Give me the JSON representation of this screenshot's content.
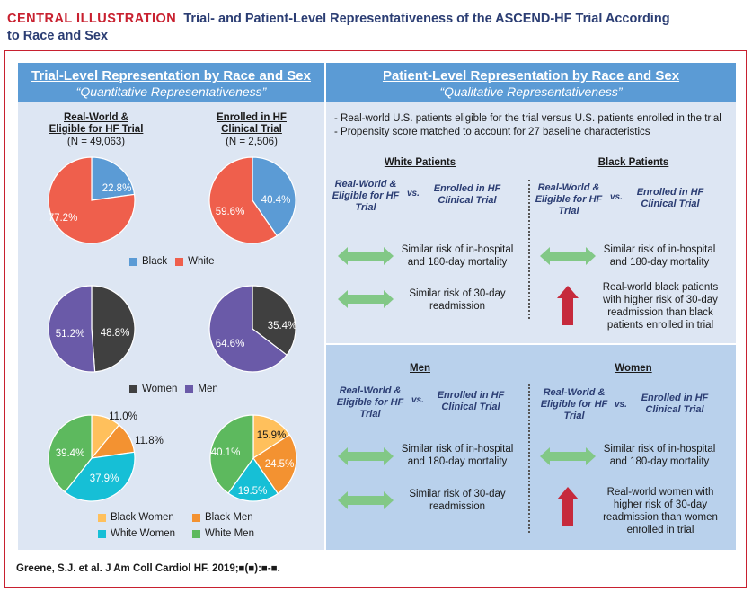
{
  "header": {
    "label": "CENTRAL ILLUSTRATION",
    "title_part1": "Trial- and Patient-Level Representativeness of the ASCEND-HF Trial According",
    "title_part2": "to Race and Sex"
  },
  "left_panel": {
    "title": "Trial-Level Representation by Race and Sex",
    "subtitle": "“Quantitative Representativeness”",
    "columns": [
      {
        "heading": "Real-World & Eligible for HF Trial",
        "n": "(N = 49,063)"
      },
      {
        "heading": "Enrolled in HF Clinical Trial",
        "n": "(N = 2,506)"
      }
    ]
  },
  "right_panel": {
    "title": "Patient-Level Representation by Race and Sex",
    "subtitle": "“Qualitative Representativeness”",
    "bullets": [
      "- Real-world U.S. patients eligible for the trial versus U.S. patients enrolled in the trial",
      "- Propensity score matched to account for 27 baseline characteristics"
    ],
    "comparison_left": "Real-World & Eligible for HF Trial",
    "vs": "vs.",
    "comparison_right": "Enrolled in HF Clinical Trial",
    "groups": {
      "white": {
        "title": "White Patients",
        "result1": "Similar risk of in-hospital and 180-day mortality",
        "result2": "Similar risk of 30-day readmission"
      },
      "black": {
        "title": "Black Patients",
        "result1": "Similar risk of in-hospital and 180-day mortality",
        "result2": "Real-world black patients with higher risk of 30-day readmission than black patients enrolled in trial"
      },
      "men": {
        "title": "Men",
        "result1": "Similar risk of in-hospital and 180-day mortality",
        "result2": "Similar risk of 30-day readmission"
      },
      "women": {
        "title": "Women",
        "result1": "Similar risk of in-hospital and 180-day mortality",
        "result2": "Real-world women with higher risk of 30-day readmission than women enrolled in trial"
      }
    }
  },
  "footnote": "Greene, S.J. et al. J Am Coll Cardiol HF. 2019;■(■):■-■.",
  "colors": {
    "black": "#5b9bd5",
    "white": "#ef5f4c",
    "women": "#404040",
    "men": "#6a5aa8",
    "black_women": "#ffc05c",
    "black_men": "#f39231",
    "white_women": "#16bfd6",
    "white_men": "#5db95e",
    "equal_arrow": "#82c886",
    "up_arrow": "#c62a3c"
  },
  "chart_data": [
    {
      "type": "pie",
      "title": "Race — Real-World & Eligible for HF Trial",
      "slices": [
        {
          "name": "Black",
          "value": 22.8,
          "label": "22.8%",
          "color_key": "black"
        },
        {
          "name": "White",
          "value": 77.2,
          "label": "77.2%",
          "color_key": "white"
        }
      ]
    },
    {
      "type": "pie",
      "title": "Race — Enrolled in HF Clinical Trial",
      "slices": [
        {
          "name": "Black",
          "value": 40.4,
          "label": "40.4%",
          "color_key": "black"
        },
        {
          "name": "White",
          "value": 59.6,
          "label": "59.6%",
          "color_key": "white"
        }
      ]
    },
    {
      "type": "pie",
      "title": "Sex — Real-World & Eligible for HF Trial",
      "slices": [
        {
          "name": "Women",
          "value": 48.8,
          "label": "48.8%",
          "color_key": "women"
        },
        {
          "name": "Men",
          "value": 51.2,
          "label": "51.2%",
          "color_key": "men"
        }
      ]
    },
    {
      "type": "pie",
      "title": "Sex — Enrolled in HF Clinical Trial",
      "slices": [
        {
          "name": "Women",
          "value": 35.4,
          "label": "35.4%",
          "color_key": "women"
        },
        {
          "name": "Men",
          "value": 64.6,
          "label": "64.6%",
          "color_key": "men"
        }
      ]
    },
    {
      "type": "pie",
      "title": "Race/Sex — Real-World & Eligible for HF Trial",
      "slices": [
        {
          "name": "Black Women",
          "value": 11.0,
          "label": "11.0%",
          "color_key": "black_women"
        },
        {
          "name": "Black Men",
          "value": 11.8,
          "label": "11.8%",
          "color_key": "black_men"
        },
        {
          "name": "White Women",
          "value": 37.9,
          "label": "37.9%",
          "color_key": "white_women"
        },
        {
          "name": "White Men",
          "value": 39.4,
          "label": "39.4%",
          "color_key": "white_men"
        }
      ]
    },
    {
      "type": "pie",
      "title": "Race/Sex — Enrolled in HF Clinical Trial",
      "slices": [
        {
          "name": "Black Women",
          "value": 15.9,
          "label": "15.9%",
          "color_key": "black_women"
        },
        {
          "name": "Black Men",
          "value": 24.5,
          "label": "24.5%",
          "color_key": "black_men"
        },
        {
          "name": "White Women",
          "value": 19.5,
          "label": "19.5%",
          "color_key": "white_women"
        },
        {
          "name": "White Men",
          "value": 40.1,
          "label": "40.1%",
          "color_key": "white_men"
        }
      ]
    }
  ],
  "legends": {
    "race": [
      "Black",
      "White"
    ],
    "sex": [
      "Women",
      "Men"
    ],
    "race_sex": [
      "Black Women",
      "Black Men",
      "White Women",
      "White Men"
    ]
  }
}
